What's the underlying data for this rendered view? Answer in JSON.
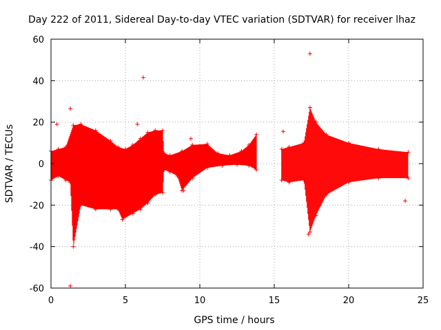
{
  "chart_data": {
    "type": "scatter",
    "title": "Day 222 of 2011, Sidereal Day-to-day VTEC variation (SDTVAR) for receiver lhaz",
    "xlabel": "GPS time / hours",
    "ylabel": "SDTVAR / TECUs",
    "xlim": [
      0,
      25
    ],
    "ylim": [
      -60,
      60
    ],
    "xticks": [
      0,
      5,
      10,
      15,
      20,
      25
    ],
    "yticks": [
      -60,
      -40,
      -20,
      0,
      20,
      40,
      60
    ],
    "grid": true,
    "marker": "+",
    "color": "#ff0000",
    "envelope_upper": [
      [
        0.0,
        6
      ],
      [
        0.5,
        7
      ],
      [
        1.0,
        8
      ],
      [
        1.5,
        18.5
      ],
      [
        2.0,
        19
      ],
      [
        3.0,
        16
      ],
      [
        4.0,
        11
      ],
      [
        4.5,
        8
      ],
      [
        5.0,
        7
      ],
      [
        5.5,
        9
      ],
      [
        6.0,
        12
      ],
      [
        6.5,
        15
      ],
      [
        7.0,
        16
      ],
      [
        7.5,
        16
      ],
      [
        7.6,
        5
      ],
      [
        8.0,
        4
      ],
      [
        8.8,
        6
      ],
      [
        9.5,
        9
      ],
      [
        10.5,
        9.5
      ],
      [
        11.2,
        5
      ],
      [
        12.0,
        4
      ],
      [
        12.8,
        6
      ],
      [
        13.3,
        9
      ],
      [
        13.8,
        14
      ],
      [
        15.5,
        7
      ],
      [
        16.0,
        8
      ],
      [
        17.0,
        10
      ],
      [
        17.4,
        27
      ],
      [
        17.8,
        20
      ],
      [
        18.5,
        14
      ],
      [
        20.0,
        10
      ],
      [
        22.0,
        7
      ],
      [
        24.0,
        5.5
      ]
    ],
    "envelope_lower": [
      [
        0.0,
        -8
      ],
      [
        0.5,
        -6
      ],
      [
        1.0,
        -8
      ],
      [
        1.3,
        -9
      ],
      [
        1.5,
        -40
      ],
      [
        2.0,
        -20
      ],
      [
        3.0,
        -22
      ],
      [
        4.0,
        -22
      ],
      [
        4.5,
        -22
      ],
      [
        4.8,
        -27
      ],
      [
        5.5,
        -24
      ],
      [
        6.0,
        -22
      ],
      [
        6.5,
        -19
      ],
      [
        7.0,
        -15
      ],
      [
        7.5,
        -14
      ],
      [
        7.6,
        -3
      ],
      [
        8.0,
        -4
      ],
      [
        8.5,
        -6
      ],
      [
        8.8,
        -13
      ],
      [
        9.5,
        -7
      ],
      [
        10.5,
        -2
      ],
      [
        11.5,
        -1
      ],
      [
        12.5,
        -0.5
      ],
      [
        13.3,
        -1
      ],
      [
        13.8,
        -3
      ],
      [
        15.5,
        -8
      ],
      [
        16.0,
        -9
      ],
      [
        17.0,
        -8
      ],
      [
        17.4,
        -33
      ],
      [
        17.8,
        -25
      ],
      [
        18.5,
        -15
      ],
      [
        20.0,
        -9
      ],
      [
        22.0,
        -7
      ],
      [
        24.0,
        -7
      ]
    ],
    "outliers": [
      {
        "x": 1.3,
        "y": 26.5
      },
      {
        "x": 5.8,
        "y": 19
      },
      {
        "x": 6.2,
        "y": 41.5
      },
      {
        "x": 1.3,
        "y": -59
      },
      {
        "x": 15.6,
        "y": 15.5
      },
      {
        "x": 17.4,
        "y": 53
      },
      {
        "x": 17.3,
        "y": -34
      },
      {
        "x": 18.3,
        "y": 14.5
      },
      {
        "x": 23.8,
        "y": -18
      },
      {
        "x": 0.4,
        "y": 19
      },
      {
        "x": 8.9,
        "y": -13
      },
      {
        "x": 9.4,
        "y": 12
      }
    ]
  }
}
